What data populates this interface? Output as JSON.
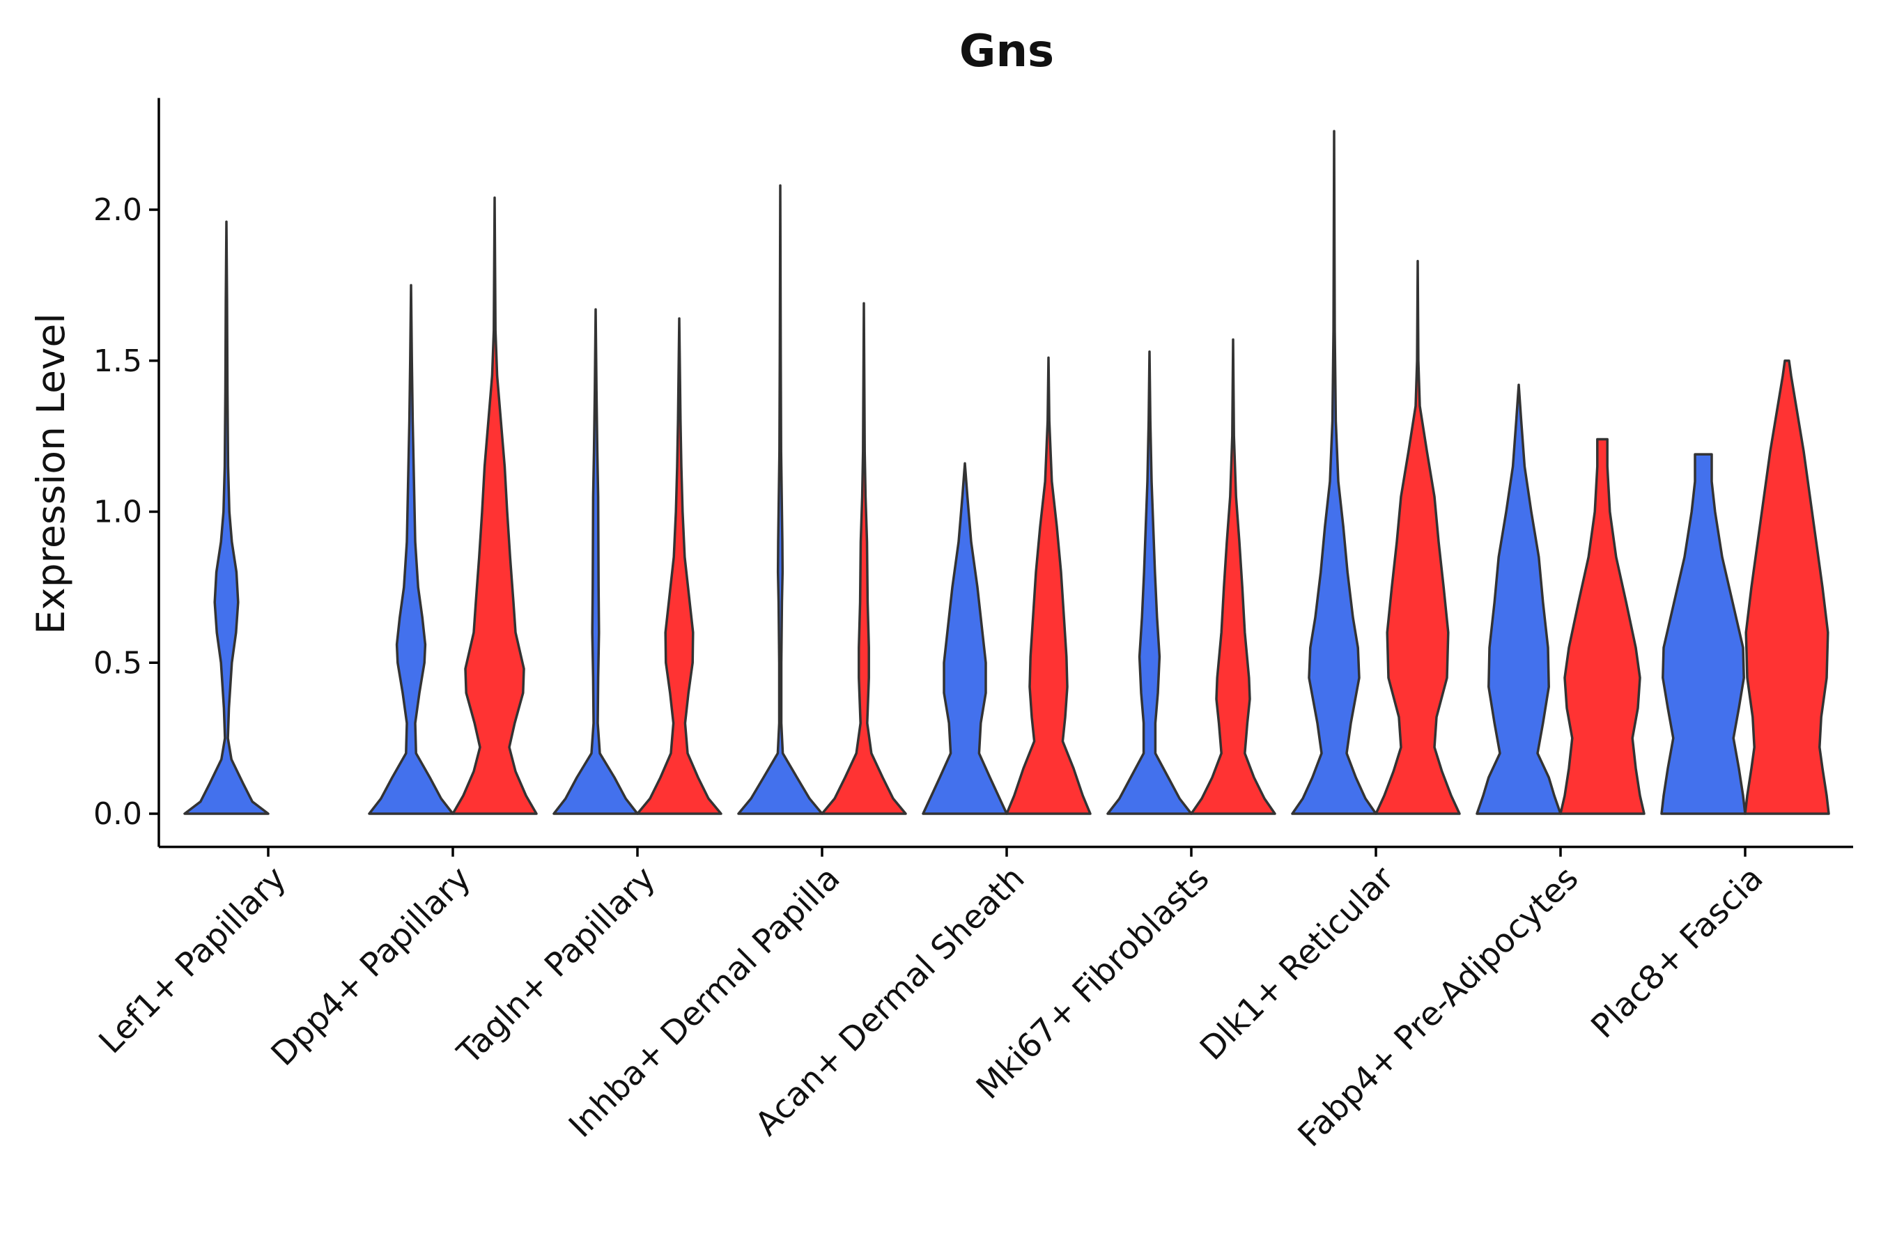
{
  "chart_data": {
    "type": "violin",
    "title": "Gns",
    "xlabel": "",
    "ylabel": "Expression Level",
    "ylim": [
      -0.11,
      2.37
    ],
    "yticks": [
      0.0,
      0.5,
      1.0,
      1.5,
      2.0
    ],
    "ytick_labels": [
      "0.0",
      "0.5",
      "1.0",
      "1.5",
      "2.0"
    ],
    "grid": false,
    "split_colors": [
      "#4371ED",
      "#FF3333"
    ],
    "categories": [
      "Lef1+ Papillary",
      "Dpp4+ Papillary",
      "Tagln+ Papillary",
      "Inhba+ Dermal Papilla",
      "Acan+ Dermal Sheath",
      "Mki67+ Fibroblasts",
      "Dlk1+ Reticular",
      "Fabp4+ Pre-Adipocytes",
      "Plac8+ Fascia"
    ],
    "violins": [
      {
        "category": "Lef1+ Papillary",
        "group": 0,
        "color": "#4371ED",
        "max": 1.96,
        "profile": [
          [
            0.0,
            1.0
          ],
          [
            0.04,
            0.62
          ],
          [
            0.1,
            0.4
          ],
          [
            0.18,
            0.12
          ],
          [
            0.25,
            0.035
          ],
          [
            0.35,
            0.06
          ],
          [
            0.5,
            0.13
          ],
          [
            0.6,
            0.23
          ],
          [
            0.7,
            0.28
          ],
          [
            0.8,
            0.24
          ],
          [
            0.9,
            0.13
          ],
          [
            1.0,
            0.07
          ],
          [
            1.15,
            0.04
          ],
          [
            1.4,
            0.025
          ],
          [
            1.7,
            0.015
          ],
          [
            1.96,
            0.0
          ]
        ]
      },
      {
        "category": "Dpp4+ Papillary",
        "group": 0,
        "color": "#4371ED",
        "max": 1.75,
        "profile": [
          [
            0.0,
            1.0
          ],
          [
            0.05,
            0.72
          ],
          [
            0.12,
            0.45
          ],
          [
            0.2,
            0.12
          ],
          [
            0.3,
            0.1
          ],
          [
            0.4,
            0.2
          ],
          [
            0.5,
            0.32
          ],
          [
            0.56,
            0.34
          ],
          [
            0.65,
            0.27
          ],
          [
            0.75,
            0.17
          ],
          [
            0.9,
            0.1
          ],
          [
            1.1,
            0.07
          ],
          [
            1.3,
            0.04
          ],
          [
            1.5,
            0.02
          ],
          [
            1.75,
            0.0
          ]
        ]
      },
      {
        "category": "Dpp4+ Papillary",
        "group": 1,
        "color": "#FF3333",
        "max": 2.04,
        "profile": [
          [
            0.0,
            1.0
          ],
          [
            0.06,
            0.75
          ],
          [
            0.14,
            0.5
          ],
          [
            0.22,
            0.35
          ],
          [
            0.3,
            0.48
          ],
          [
            0.4,
            0.68
          ],
          [
            0.48,
            0.7
          ],
          [
            0.6,
            0.5
          ],
          [
            0.7,
            0.45
          ],
          [
            0.85,
            0.37
          ],
          [
            1.0,
            0.3
          ],
          [
            1.15,
            0.24
          ],
          [
            1.3,
            0.15
          ],
          [
            1.45,
            0.06
          ],
          [
            1.6,
            0.02
          ],
          [
            2.04,
            0.0
          ]
        ]
      },
      {
        "category": "Tagln+ Papillary",
        "group": 0,
        "color": "#4371ED",
        "max": 1.67,
        "profile": [
          [
            0.0,
            1.0
          ],
          [
            0.05,
            0.72
          ],
          [
            0.12,
            0.45
          ],
          [
            0.2,
            0.1
          ],
          [
            0.3,
            0.05
          ],
          [
            0.45,
            0.06
          ],
          [
            0.6,
            0.08
          ],
          [
            0.75,
            0.07
          ],
          [
            0.9,
            0.065
          ],
          [
            1.05,
            0.06
          ],
          [
            1.2,
            0.04
          ],
          [
            1.4,
            0.02
          ],
          [
            1.67,
            0.0
          ]
        ]
      },
      {
        "category": "Tagln+ Papillary",
        "group": 1,
        "color": "#FF3333",
        "max": 1.64,
        "profile": [
          [
            0.0,
            1.0
          ],
          [
            0.05,
            0.7
          ],
          [
            0.12,
            0.45
          ],
          [
            0.2,
            0.2
          ],
          [
            0.3,
            0.14
          ],
          [
            0.4,
            0.22
          ],
          [
            0.5,
            0.32
          ],
          [
            0.6,
            0.33
          ],
          [
            0.7,
            0.25
          ],
          [
            0.85,
            0.13
          ],
          [
            1.0,
            0.08
          ],
          [
            1.15,
            0.05
          ],
          [
            1.3,
            0.03
          ],
          [
            1.64,
            0.0
          ]
        ]
      },
      {
        "category": "Inhba+ Dermal Papilla",
        "group": 0,
        "color": "#4371ED",
        "max": 2.08,
        "profile": [
          [
            0.0,
            1.0
          ],
          [
            0.05,
            0.7
          ],
          [
            0.12,
            0.4
          ],
          [
            0.2,
            0.06
          ],
          [
            0.3,
            0.025
          ],
          [
            0.5,
            0.025
          ],
          [
            0.7,
            0.04
          ],
          [
            0.8,
            0.055
          ],
          [
            0.9,
            0.05
          ],
          [
            1.0,
            0.04
          ],
          [
            1.2,
            0.02
          ],
          [
            1.5,
            0.012
          ],
          [
            2.08,
            0.0
          ]
        ]
      },
      {
        "category": "Inhba+ Dermal Papilla",
        "group": 1,
        "color": "#FF3333",
        "max": 1.69,
        "profile": [
          [
            0.0,
            1.0
          ],
          [
            0.05,
            0.7
          ],
          [
            0.12,
            0.45
          ],
          [
            0.2,
            0.18
          ],
          [
            0.3,
            0.08
          ],
          [
            0.45,
            0.12
          ],
          [
            0.55,
            0.12
          ],
          [
            0.7,
            0.09
          ],
          [
            0.9,
            0.075
          ],
          [
            1.05,
            0.04
          ],
          [
            1.2,
            0.02
          ],
          [
            1.69,
            0.0
          ]
        ]
      },
      {
        "category": "Acan+ Dermal Sheath",
        "group": 0,
        "color": "#4371ED",
        "max": 1.16,
        "profile": [
          [
            0.0,
            1.0
          ],
          [
            0.06,
            0.8
          ],
          [
            0.12,
            0.6
          ],
          [
            0.2,
            0.34
          ],
          [
            0.3,
            0.38
          ],
          [
            0.4,
            0.5
          ],
          [
            0.5,
            0.5
          ],
          [
            0.6,
            0.42
          ],
          [
            0.75,
            0.3
          ],
          [
            0.9,
            0.15
          ],
          [
            1.05,
            0.06
          ],
          [
            1.16,
            0.0
          ]
        ]
      },
      {
        "category": "Acan+ Dermal Sheath",
        "group": 1,
        "color": "#FF3333",
        "max": 1.51,
        "profile": [
          [
            0.0,
            1.0
          ],
          [
            0.06,
            0.82
          ],
          [
            0.15,
            0.6
          ],
          [
            0.24,
            0.34
          ],
          [
            0.32,
            0.4
          ],
          [
            0.42,
            0.45
          ],
          [
            0.52,
            0.43
          ],
          [
            0.65,
            0.37
          ],
          [
            0.8,
            0.3
          ],
          [
            0.95,
            0.2
          ],
          [
            1.1,
            0.08
          ],
          [
            1.3,
            0.02
          ],
          [
            1.51,
            0.0
          ]
        ]
      },
      {
        "category": "Mki67+ Fibroblasts",
        "group": 0,
        "color": "#4371ED",
        "max": 1.53,
        "profile": [
          [
            0.0,
            1.0
          ],
          [
            0.05,
            0.72
          ],
          [
            0.12,
            0.45
          ],
          [
            0.2,
            0.14
          ],
          [
            0.3,
            0.14
          ],
          [
            0.4,
            0.2
          ],
          [
            0.52,
            0.24
          ],
          [
            0.65,
            0.18
          ],
          [
            0.8,
            0.13
          ],
          [
            0.95,
            0.09
          ],
          [
            1.1,
            0.05
          ],
          [
            1.3,
            0.02
          ],
          [
            1.53,
            0.0
          ]
        ]
      },
      {
        "category": "Mki67+ Fibroblasts",
        "group": 1,
        "color": "#FF3333",
        "max": 1.57,
        "profile": [
          [
            0.0,
            1.0
          ],
          [
            0.05,
            0.75
          ],
          [
            0.12,
            0.5
          ],
          [
            0.2,
            0.28
          ],
          [
            0.3,
            0.34
          ],
          [
            0.38,
            0.4
          ],
          [
            0.45,
            0.38
          ],
          [
            0.6,
            0.28
          ],
          [
            0.75,
            0.22
          ],
          [
            0.9,
            0.15
          ],
          [
            1.05,
            0.07
          ],
          [
            1.25,
            0.02
          ],
          [
            1.57,
            0.0
          ]
        ]
      },
      {
        "category": "Dlk1+ Reticular",
        "group": 0,
        "color": "#4371ED",
        "max": 2.26,
        "profile": [
          [
            0.0,
            1.0
          ],
          [
            0.05,
            0.75
          ],
          [
            0.12,
            0.52
          ],
          [
            0.2,
            0.3
          ],
          [
            0.3,
            0.4
          ],
          [
            0.45,
            0.6
          ],
          [
            0.55,
            0.57
          ],
          [
            0.65,
            0.45
          ],
          [
            0.8,
            0.32
          ],
          [
            0.95,
            0.22
          ],
          [
            1.1,
            0.1
          ],
          [
            1.3,
            0.04
          ],
          [
            1.6,
            0.015
          ],
          [
            2.26,
            0.0
          ]
        ]
      },
      {
        "category": "Dlk1+ Reticular",
        "group": 1,
        "color": "#FF3333",
        "max": 1.83,
        "profile": [
          [
            0.0,
            1.0
          ],
          [
            0.06,
            0.8
          ],
          [
            0.14,
            0.58
          ],
          [
            0.22,
            0.4
          ],
          [
            0.32,
            0.45
          ],
          [
            0.45,
            0.7
          ],
          [
            0.6,
            0.73
          ],
          [
            0.75,
            0.62
          ],
          [
            0.9,
            0.5
          ],
          [
            1.05,
            0.4
          ],
          [
            1.2,
            0.22
          ],
          [
            1.35,
            0.05
          ],
          [
            1.5,
            0.015
          ],
          [
            1.83,
            0.0
          ]
        ]
      },
      {
        "category": "Fabp4+ Pre-Adipocytes",
        "group": 0,
        "color": "#4371ED",
        "max": 1.42,
        "profile": [
          [
            0.0,
            1.0
          ],
          [
            0.06,
            0.85
          ],
          [
            0.12,
            0.72
          ],
          [
            0.2,
            0.45
          ],
          [
            0.3,
            0.58
          ],
          [
            0.42,
            0.72
          ],
          [
            0.55,
            0.7
          ],
          [
            0.7,
            0.58
          ],
          [
            0.85,
            0.48
          ],
          [
            1.0,
            0.3
          ],
          [
            1.15,
            0.14
          ],
          [
            1.3,
            0.06
          ],
          [
            1.42,
            0.0
          ]
        ]
      },
      {
        "category": "Fabp4+ Pre-Adipocytes",
        "group": 1,
        "color": "#FF3333",
        "max": 1.24,
        "profile": [
          [
            0.0,
            1.0
          ],
          [
            0.06,
            0.9
          ],
          [
            0.15,
            0.8
          ],
          [
            0.25,
            0.72
          ],
          [
            0.35,
            0.85
          ],
          [
            0.45,
            0.9
          ],
          [
            0.55,
            0.8
          ],
          [
            0.7,
            0.57
          ],
          [
            0.85,
            0.33
          ],
          [
            1.0,
            0.18
          ],
          [
            1.15,
            0.12
          ],
          [
            1.24,
            0.12
          ]
        ]
      },
      {
        "category": "Plac8+ Fascia",
        "group": 0,
        "color": "#4371ED",
        "max": 1.19,
        "profile": [
          [
            0.0,
            1.0
          ],
          [
            0.06,
            0.95
          ],
          [
            0.15,
            0.85
          ],
          [
            0.25,
            0.72
          ],
          [
            0.35,
            0.85
          ],
          [
            0.45,
            0.97
          ],
          [
            0.55,
            0.95
          ],
          [
            0.7,
            0.7
          ],
          [
            0.85,
            0.45
          ],
          [
            1.0,
            0.28
          ],
          [
            1.1,
            0.2
          ],
          [
            1.19,
            0.2
          ]
        ]
      },
      {
        "category": "Plac8+ Fascia",
        "group": 1,
        "color": "#FF3333",
        "max": 1.5,
        "profile": [
          [
            0.0,
            1.0
          ],
          [
            0.06,
            0.95
          ],
          [
            0.15,
            0.85
          ],
          [
            0.22,
            0.78
          ],
          [
            0.32,
            0.82
          ],
          [
            0.45,
            0.95
          ],
          [
            0.6,
            0.98
          ],
          [
            0.75,
            0.85
          ],
          [
            0.9,
            0.7
          ],
          [
            1.05,
            0.55
          ],
          [
            1.2,
            0.4
          ],
          [
            1.35,
            0.22
          ],
          [
            1.45,
            0.1
          ],
          [
            1.5,
            0.05
          ]
        ]
      }
    ]
  }
}
